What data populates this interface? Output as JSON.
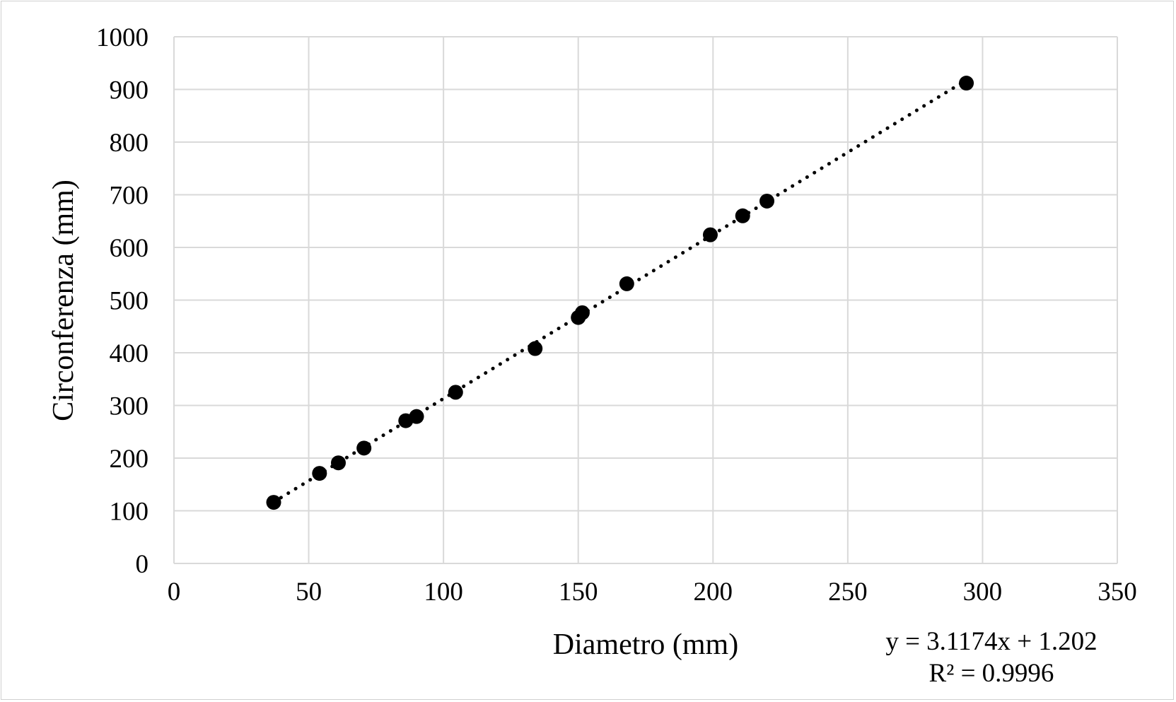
{
  "chart_data": {
    "type": "scatter",
    "title": "",
    "xlabel": "Diametro (mm)",
    "ylabel": "Circonferenza (mm)",
    "xlim": [
      0,
      350
    ],
    "ylim": [
      0,
      1000
    ],
    "xticks": [
      "0",
      "50",
      "100",
      "150",
      "200",
      "250",
      "300",
      "350"
    ],
    "yticks": [
      "0",
      "100",
      "200",
      "300",
      "400",
      "500",
      "600",
      "700",
      "800",
      "900",
      "1000"
    ],
    "grid": true,
    "legend": "none",
    "marker_color": "#000000",
    "grid_color": "#d9d9d9",
    "series": [
      {
        "x": [
          37,
          54,
          61,
          70.5,
          86,
          90,
          104.5,
          134,
          150,
          151.5,
          168,
          199,
          211,
          220,
          294
        ],
        "y": [
          116,
          171,
          191,
          219,
          271,
          279,
          325,
          408,
          467,
          476,
          531,
          624,
          660,
          688,
          912
        ]
      }
    ],
    "trendline": {
      "type": "linear",
      "style": "dotted",
      "slope": 3.1174,
      "intercept": 1.202,
      "x_range": [
        37,
        294
      ],
      "equation": "y = 3.1174x + 1.202",
      "r_squared": "R² = 0.9996"
    }
  }
}
